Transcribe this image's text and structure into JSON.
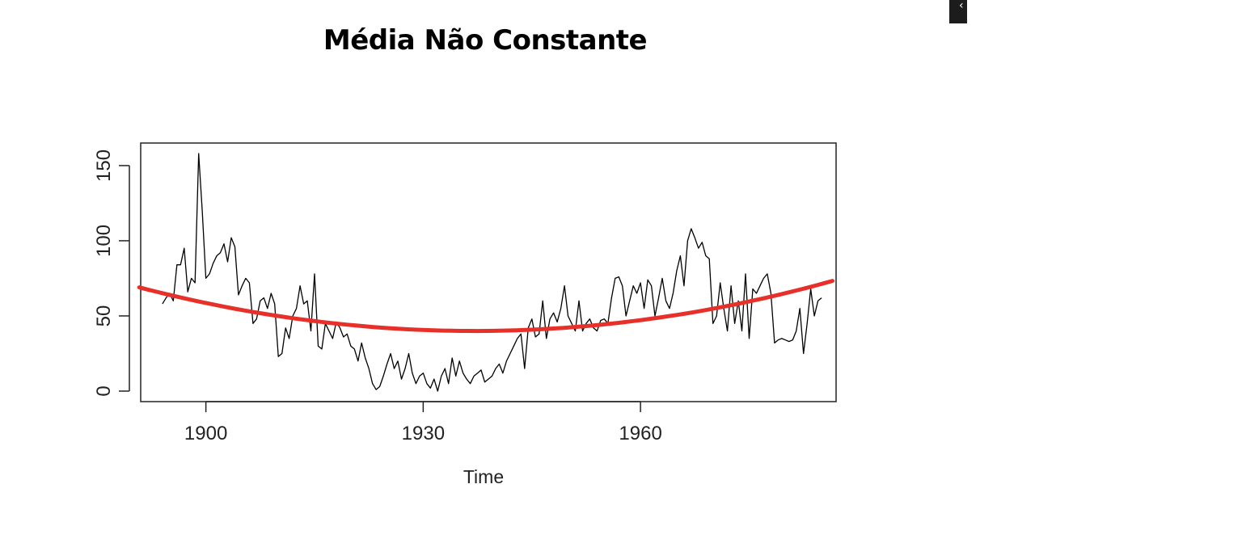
{
  "slide": {
    "title": "Média Não Constante"
  },
  "corner": {
    "icon": "arrow-icon"
  },
  "chart_data": {
    "type": "line",
    "title": "",
    "xlabel": "Time",
    "ylabel": "",
    "xlim": [
      1891,
      1987
    ],
    "ylim": [
      -7,
      165
    ],
    "xticks": [
      1900,
      1930,
      1960
    ],
    "yticks": [
      0,
      50,
      100,
      150
    ],
    "grid": false,
    "legend": "none",
    "series": [
      {
        "role": "observed",
        "color": "#000000",
        "start_year": 1894,
        "step": 0.5,
        "values": [
          58,
          62,
          65,
          60,
          84,
          84,
          95,
          66,
          75,
          72,
          158,
          120,
          75,
          78,
          85,
          90,
          92,
          98,
          86,
          102,
          96,
          64,
          70,
          75,
          72,
          45,
          48,
          60,
          62,
          55,
          65,
          58,
          23,
          25,
          42,
          35,
          50,
          55,
          70,
          58,
          60,
          40,
          78,
          30,
          28,
          45,
          40,
          35,
          46,
          42,
          36,
          38,
          30,
          28,
          20,
          32,
          22,
          15,
          5,
          1,
          3,
          10,
          18,
          25,
          15,
          20,
          8,
          15,
          25,
          12,
          5,
          10,
          12,
          5,
          2,
          8,
          0,
          10,
          15,
          5,
          22,
          10,
          20,
          12,
          8,
          5,
          10,
          12,
          14,
          6,
          8,
          10,
          15,
          18,
          12,
          20,
          25,
          30,
          35,
          38,
          15,
          42,
          48,
          36,
          38,
          60,
          35,
          48,
          52,
          46,
          55,
          70,
          50,
          45,
          40,
          60,
          40,
          45,
          48,
          42,
          40,
          47,
          48,
          45,
          62,
          75,
          76,
          70,
          50,
          60,
          70,
          65,
          72,
          55,
          74,
          70,
          50,
          62,
          75,
          60,
          55,
          65,
          80,
          90,
          70,
          100,
          108,
          102,
          95,
          99,
          90,
          88,
          45,
          50,
          72,
          55,
          40,
          70,
          45,
          60,
          40,
          78,
          35,
          68,
          65,
          70,
          75,
          78,
          65,
          32,
          34,
          35,
          34,
          33,
          34,
          40,
          55,
          25,
          45,
          68,
          50,
          60,
          62
        ]
      },
      {
        "role": "trend",
        "color": "#e8302a",
        "x": [
          1890.8,
          1937,
          1986.5
        ],
        "values": [
          69,
          40,
          69
        ]
      }
    ]
  }
}
